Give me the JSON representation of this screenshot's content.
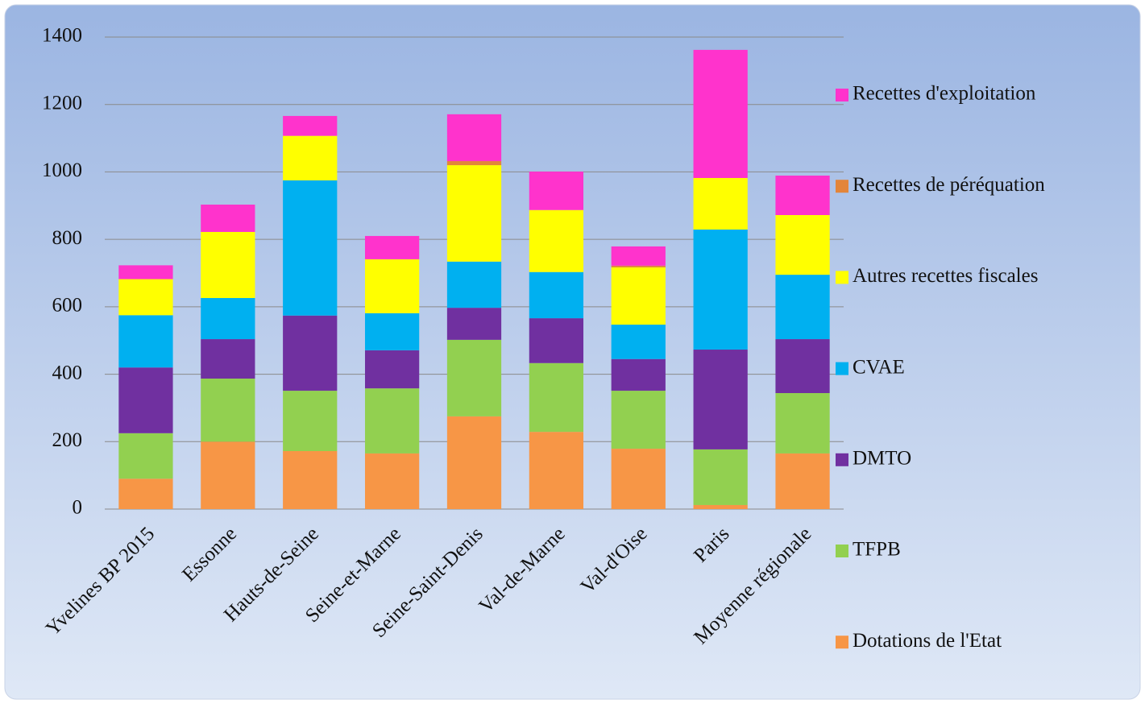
{
  "chart_data": {
    "type": "stacked_bar",
    "categories": [
      "Yvelines BP 2015",
      "Essonne",
      "Hauts-de-Seine",
      "Seine-et-Marne",
      "Seine-Saint-Denis",
      "Val-de-Marne",
      "Val-d'Oise",
      "Paris",
      "Moyenne régionale"
    ],
    "series": [
      {
        "name": "Dotations de l'Etat",
        "color": "#f79646",
        "values": [
          90,
          200,
          172,
          165,
          275,
          229,
          179,
          12,
          165
        ]
      },
      {
        "name": "TFPB",
        "color": "#92d050",
        "values": [
          135,
          187,
          179,
          193,
          227,
          204,
          172,
          165,
          179
        ]
      },
      {
        "name": "DMTO",
        "color": "#7030a0",
        "values": [
          195,
          117,
          223,
          113,
          95,
          133,
          94,
          296,
          160
        ]
      },
      {
        "name": "CVAE",
        "color": "#00b0f0",
        "values": [
          155,
          122,
          401,
          110,
          137,
          137,
          102,
          356,
          191
        ]
      },
      {
        "name": "Autres recettes fiscales",
        "color": "#ffff00",
        "values": [
          107,
          196,
          132,
          160,
          286,
          184,
          170,
          153,
          177
        ]
      },
      {
        "name": "Recettes de péréquation",
        "color": "#e3853a",
        "values": [
          0,
          0,
          0,
          0,
          12,
          0,
          5,
          0,
          0
        ]
      },
      {
        "name": "Recettes d'exploitation",
        "color": "#ff33cc",
        "values": [
          41,
          81,
          59,
          69,
          139,
          114,
          57,
          380,
          117
        ]
      }
    ],
    "ylim": [
      0,
      1400
    ],
    "yticks": [
      0,
      200,
      400,
      600,
      800,
      1000,
      1200,
      1400
    ],
    "grid": true,
    "legend": "right"
  }
}
